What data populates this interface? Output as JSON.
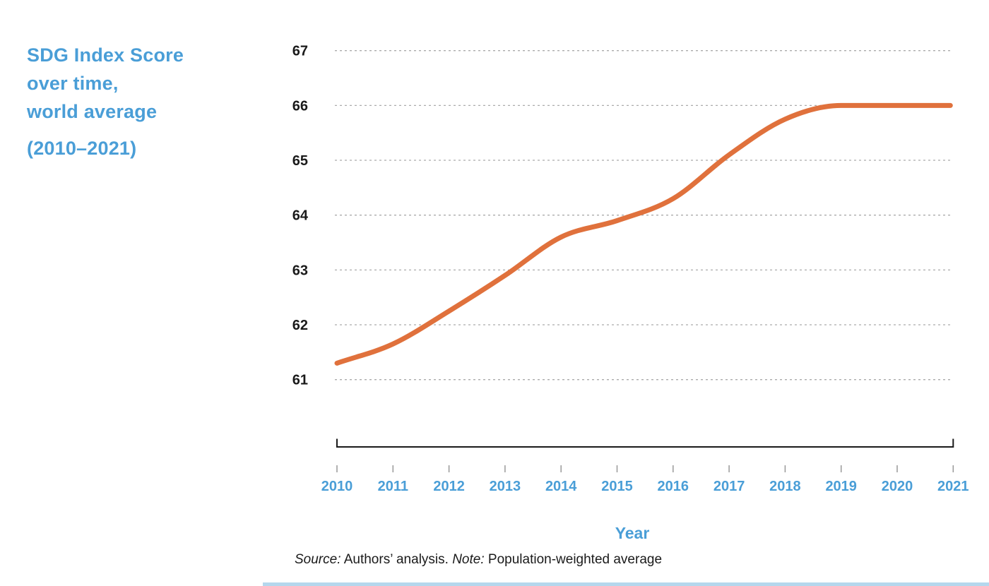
{
  "title": {
    "line1": "SDG Index Score",
    "line2": "over time,",
    "line3": "world average",
    "period": "(2010–2021)"
  },
  "axis": {
    "x_label": "Year"
  },
  "source": {
    "label1": "Source:",
    "text1": " Authors’ analysis. ",
    "label2": "Note:",
    "text2": " Population-weighted average"
  },
  "colors": {
    "accent_blue": "#4A9ED7",
    "line_orange": "#E0713C",
    "grid_gray": "#ABABAB",
    "axis_black": "#1a1a1a",
    "tick_gray": "#999999",
    "footer_bar_blue": "#B5D7ED"
  },
  "chart_data": {
    "type": "line",
    "title": "SDG Index Score over time, world average (2010–2021)",
    "xlabel": "Year",
    "ylabel": "",
    "x": [
      2010,
      2011,
      2012,
      2013,
      2014,
      2015,
      2016,
      2017,
      2018,
      2019,
      2020,
      2021
    ],
    "series": [
      {
        "name": "World average SDG Index Score",
        "values": [
          61.3,
          61.65,
          62.25,
          62.9,
          63.6,
          63.9,
          64.3,
          65.1,
          65.75,
          66.0,
          66.0,
          66.0
        ]
      }
    ],
    "ylim": [
      61,
      67
    ],
    "yticks": [
      61,
      62,
      63,
      64,
      65,
      66,
      67
    ],
    "grid": "horizontal-dashed",
    "legend_position": "none"
  }
}
